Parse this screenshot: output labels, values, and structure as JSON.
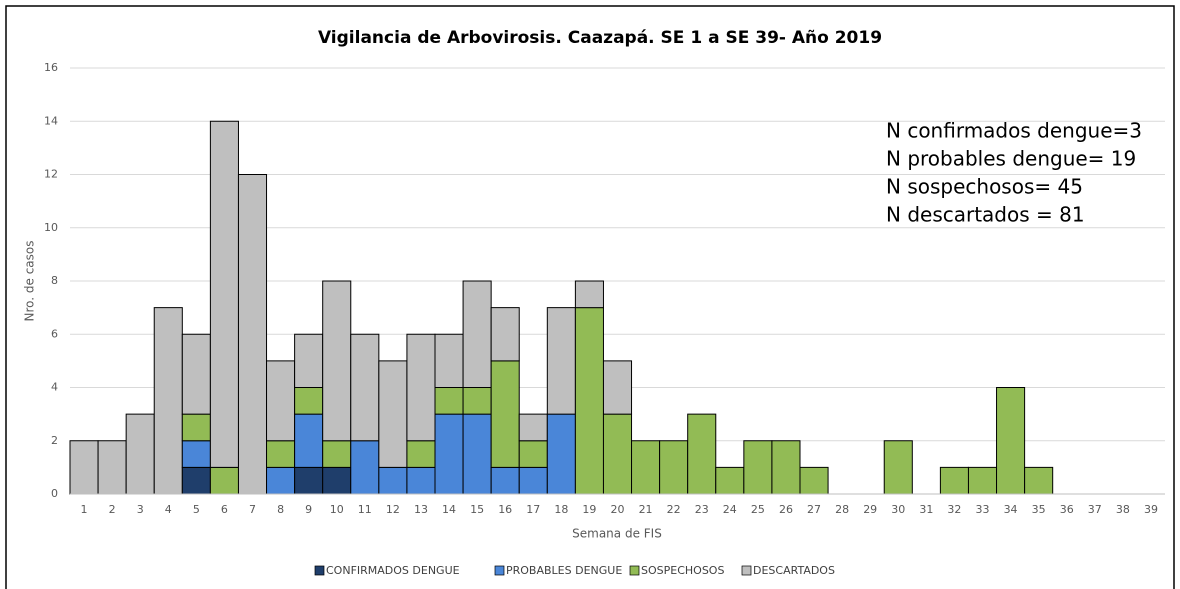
{
  "chart_data": {
    "type": "stacked_bar",
    "title": "Vigilancia de Arbovirosis. Caazapá. SE 1 a SE 39- Año 2019",
    "x_label": "Semana de FIS",
    "y_label": "Nro. de casos",
    "categories": [
      "1",
      "2",
      "3",
      "4",
      "5",
      "6",
      "7",
      "8",
      "9",
      "10",
      "11",
      "12",
      "13",
      "14",
      "15",
      "16",
      "17",
      "18",
      "19",
      "20",
      "21",
      "22",
      "23",
      "24",
      "25",
      "26",
      "27",
      "28",
      "29",
      "30",
      "31",
      "32",
      "33",
      "34",
      "35",
      "36",
      "37",
      "38",
      "39"
    ],
    "series": [
      {
        "name": "CONFIRMADOS DENGUE",
        "color": "#1f3e6b",
        "values": [
          0,
          0,
          0,
          0,
          1,
          0,
          0,
          0,
          1,
          1,
          0,
          0,
          0,
          0,
          0,
          0,
          0,
          0,
          0,
          0,
          0,
          0,
          0,
          0,
          0,
          0,
          0,
          0,
          0,
          0,
          0,
          0,
          0,
          0,
          0,
          0,
          0,
          0,
          0
        ]
      },
      {
        "name": "PROBABLES DENGUE",
        "color": "#4a86d8",
        "values": [
          0,
          0,
          0,
          0,
          1,
          0,
          0,
          1,
          2,
          0,
          2,
          1,
          1,
          3,
          3,
          1,
          1,
          3,
          0,
          0,
          0,
          0,
          0,
          0,
          0,
          0,
          0,
          0,
          0,
          0,
          0,
          0,
          0,
          0,
          0,
          0,
          0,
          0,
          0
        ]
      },
      {
        "name": "SOSPECHOSOS",
        "color": "#92bb55",
        "values": [
          0,
          0,
          0,
          0,
          1,
          1,
          0,
          1,
          1,
          1,
          0,
          0,
          1,
          1,
          1,
          4,
          1,
          0,
          7,
          3,
          2,
          2,
          3,
          1,
          2,
          2,
          1,
          0,
          0,
          2,
          0,
          1,
          1,
          4,
          1,
          0,
          0,
          0,
          0
        ]
      },
      {
        "name": "DESCARTADOS",
        "color": "#bfbfbf",
        "values": [
          2,
          2,
          3,
          7,
          3,
          13,
          12,
          3,
          2,
          6,
          4,
          4,
          4,
          2,
          4,
          2,
          1,
          4,
          1,
          2,
          0,
          0,
          0,
          0,
          0,
          0,
          0,
          0,
          0,
          0,
          0,
          0,
          0,
          0,
          0,
          0,
          0,
          0,
          0
        ]
      }
    ],
    "ylim": [
      0,
      16
    ],
    "yticks": [
      0,
      2,
      4,
      6,
      8,
      10,
      12,
      14,
      16
    ],
    "grid": true,
    "legend": "bottom",
    "annotations": [
      "N confirmados  dengue=3",
      "N probables  dengue=  19",
      "N sospechosos=  45",
      "N descartados  =  81"
    ]
  }
}
